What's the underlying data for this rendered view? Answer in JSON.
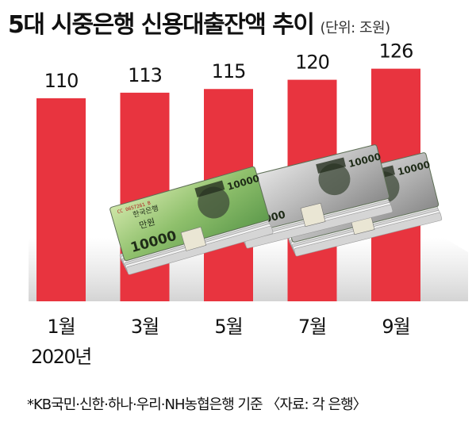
{
  "chart_data": {
    "type": "bar",
    "title": "5대 시중은행 신용대출잔액 추이",
    "unit": "(단위: 조원)",
    "categories": [
      "1월",
      "3월",
      "5월",
      "7월",
      "9월"
    ],
    "year_label": "2020년",
    "values": [
      110,
      113,
      115,
      120,
      126
    ],
    "value_labels": [
      "110",
      "113",
      "115",
      "120",
      "126"
    ],
    "bar_color": "#e8343f",
    "ylim": [
      0,
      134
    ],
    "grid": false,
    "illustration": {
      "description_icon": "banknote-stack-icon",
      "banknote_texts": [
        "10000",
        "한국은행",
        "만원",
        "CC 0657261 B"
      ]
    }
  },
  "source": "*KB국민·신한·하나·우리·NH농협은행 기준 〈자료: 각 은행〉"
}
